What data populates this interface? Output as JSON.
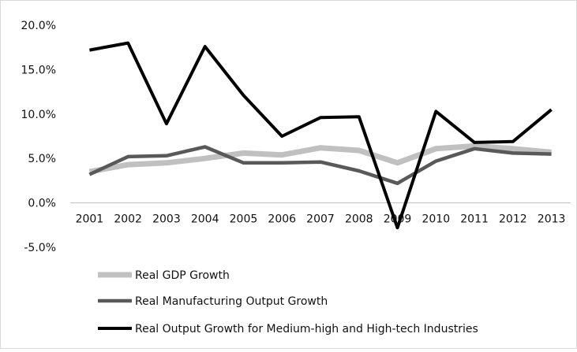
{
  "chart_data": {
    "type": "line",
    "title": "",
    "xlabel": "",
    "ylabel": "",
    "categories": [
      "2001",
      "2002",
      "2003",
      "2004",
      "2005",
      "2006",
      "2007",
      "2008",
      "2009",
      "2010",
      "2011",
      "2012",
      "2013"
    ],
    "ylim": [
      -0.05,
      0.2
    ],
    "y_ticks": [
      {
        "value": 0.2,
        "label": "20.0%"
      },
      {
        "value": 0.15,
        "label": "15.0%"
      },
      {
        "value": 0.1,
        "label": "10.0%"
      },
      {
        "value": 0.05,
        "label": "5.0%"
      },
      {
        "value": 0.0,
        "label": "0.0%"
      },
      {
        "value": -0.05,
        "label": "-5.0%"
      }
    ],
    "grid": false,
    "legend_position": "bottom-left",
    "series": [
      {
        "name": "Real GDP Growth",
        "color": "#c0c0c0",
        "values": [
          0.035,
          0.043,
          0.045,
          0.05,
          0.056,
          0.054,
          0.062,
          0.059,
          0.045,
          0.061,
          0.064,
          0.061,
          0.057
        ]
      },
      {
        "name": "Real Manufacturing Output Growth",
        "color": "#595959",
        "values": [
          0.032,
          0.052,
          0.053,
          0.063,
          0.045,
          0.045,
          0.046,
          0.036,
          0.022,
          0.047,
          0.061,
          0.056,
          0.055
        ]
      },
      {
        "name": "Real Output Growth for Medium-high and High-tech Industries",
        "color": "#000000",
        "values": [
          0.172,
          0.18,
          0.089,
          0.176,
          0.121,
          0.075,
          0.096,
          0.097,
          -0.028,
          0.103,
          0.068,
          0.069,
          0.105
        ]
      }
    ]
  }
}
